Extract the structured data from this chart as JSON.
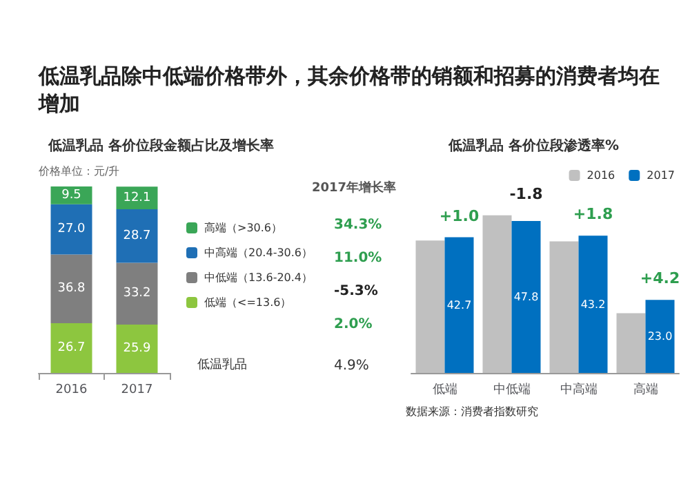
{
  "chart_data": [
    {
      "type": "bar",
      "title": "低温乳品除中低端价格带外，其余价格带的销额和招募的消费者均在增加",
      "subtitle": "低温乳品 各价位段金额占比及增长率",
      "categories": [
        "2016",
        "2017"
      ],
      "stacked": true,
      "legend": "right",
      "series": [
        {
          "name": "低端（<=13.6）",
          "color": "#8dc63f",
          "values": [
            26.7,
            25.9
          ],
          "value_labels": [
            "26.7",
            "25.9"
          ]
        },
        {
          "name": "中低端（13.6-20.4）",
          "color": "#7f7f7f",
          "values": [
            36.8,
            33.2
          ],
          "value_labels": [
            "36.8",
            "33.2"
          ]
        },
        {
          "name": "中高端（20.4-30.6）",
          "color": "#1f6fb5",
          "values": [
            27.0,
            28.7
          ],
          "value_labels": [
            "27.0",
            "28.7"
          ]
        },
        {
          "name": "高端（>30.6）",
          "color": "#3aa657",
          "values": [
            9.5,
            12.1
          ],
          "value_labels": [
            "9.5",
            "12.1"
          ]
        }
      ],
      "annotations": [
        "价格单位：元/升",
        "2017年增长率",
        "2.0%",
        "-5.3%",
        "11.0%",
        "34.3%",
        "低温乳品",
        "4.9%"
      ]
    },
    {
      "type": "bar",
      "subtitle": "低温乳品 各价位段渗透率%",
      "categories": [
        "低端",
        "中低端",
        "中高端",
        "高端"
      ],
      "legend": "top right",
      "series": [
        {
          "name": "2016",
          "color": "#c0c0c0",
          "values": [
            41.7,
            49.6,
            41.4,
            18.8
          ]
        },
        {
          "name": "2017",
          "color": "#0070c0",
          "values": [
            42.7,
            47.8,
            43.2,
            23.0
          ],
          "value_labels": [
            "42.7",
            "47.8",
            "43.2",
            "23.0"
          ]
        }
      ],
      "annotations": [
        {
          "text": "+1.0",
          "x": "低端",
          "y": 42.7
        },
        {
          "text": "-1.8",
          "x": "中低端",
          "y": 49.6
        },
        {
          "text": "+1.8",
          "x": "中高端",
          "y": 43.2
        },
        {
          "text": "+4.2",
          "x": "高端",
          "y": 23.0
        },
        "数据来源：消费者指数研究"
      ]
    }
  ]
}
